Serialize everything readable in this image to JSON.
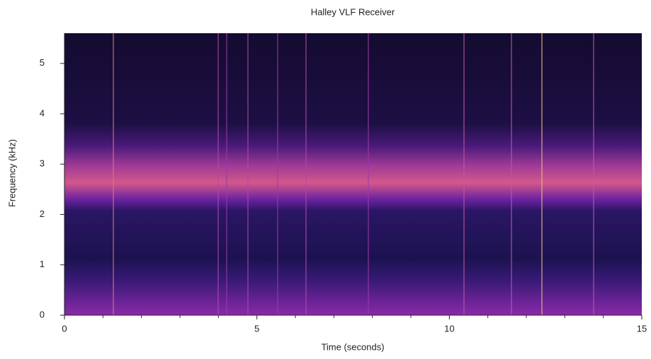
{
  "chart_data": {
    "type": "spectrogram",
    "title": "Halley VLF Receiver",
    "x_label": "Time (seconds)",
    "y_label": "Frequency (kHz)",
    "xlim": [
      0,
      15
    ],
    "xticks": [
      0,
      5,
      10,
      15
    ],
    "xminor_ticks": [
      1,
      2,
      3,
      4,
      6,
      7,
      8,
      9,
      11,
      12,
      13,
      14
    ],
    "ylim": [
      0,
      5.6
    ],
    "yticks": [
      0,
      1,
      2,
      3,
      4,
      5
    ]
  }
}
